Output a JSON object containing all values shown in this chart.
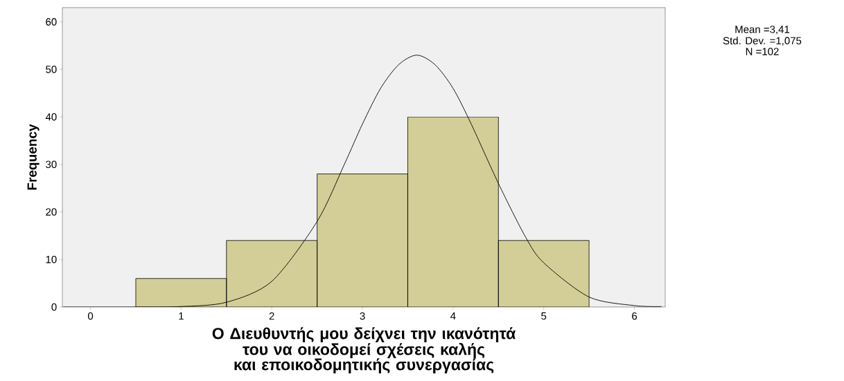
{
  "chart_data": {
    "type": "histogram",
    "xlabel": "Ο Διευθυντής μου δείχνει την ικανότητά του να οικοδομεί σχέσεις καλής και εποικοδομητικής συνεργασίας",
    "ylabel": "Frequency",
    "annotations": [
      "Mean =3,41",
      "Std. Dev. =1,075",
      "N =102"
    ],
    "series": [
      {
        "bins": [
          0.5,
          1.5,
          2.5,
          3.5,
          4.5,
          5.5
        ],
        "values": [
          6,
          14,
          28,
          40,
          14
        ],
        "color": "#d3ce97"
      },
      {
        "type": "line",
        "x": [
          -0.3,
          0.5,
          1,
          1.5,
          2,
          2.5,
          2.8,
          3.0,
          3.2,
          3.4,
          3.6,
          3.8,
          4.0,
          4.2,
          4.5,
          4.8,
          5.0,
          5.5,
          6.0,
          6.3
        ],
        "values": [
          0,
          0,
          0.1,
          1,
          5.4,
          18,
          30,
          38.5,
          46,
          51,
          53,
          51,
          46,
          38.5,
          26,
          14.7,
          9.3,
          2.1,
          0.3,
          0.1
        ],
        "color": "#000000"
      }
    ],
    "xlim": [
      -0.31,
      6.34
    ],
    "ylim": [
      0,
      63
    ],
    "xticks": [
      0,
      1,
      2,
      3,
      4,
      5,
      6
    ],
    "yticks": [
      0,
      10,
      20,
      30,
      40,
      50,
      60
    ],
    "grid": false,
    "marker": "none",
    "line_style": "solid"
  }
}
